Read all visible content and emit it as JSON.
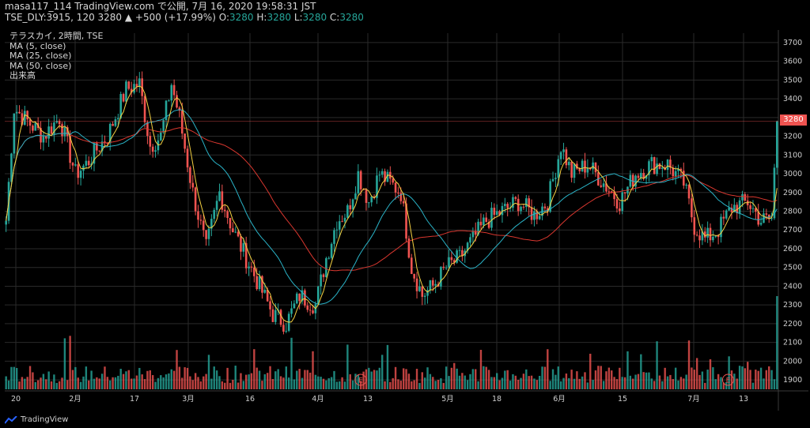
{
  "header": {
    "line1": "masa117_114 TradingView.com で公開, 7月 16, 2020 19:58:31 JST",
    "ticker_info": "TSE_DLY:3915, 120 3280 ▲ +500 (+17.99%)",
    "o_label": "O:",
    "o_val": "3280",
    "h_label": "H:",
    "h_val": "3280",
    "l_label": "L:",
    "l_val": "3280",
    "c_label": "C:",
    "c_val": "3280"
  },
  "legend": [
    "テラスカイ, 2時間, TSE",
    "MA (5, close)",
    "MA (25, close)",
    "MA (50, close)",
    "出来高"
  ],
  "last_price_label": "3280",
  "brand": "TradingView",
  "event_marker": "E",
  "colors": {
    "up": "#26a69a",
    "down": "#ef5350",
    "ma5": "#f5d142",
    "ma25": "#2ab3c7",
    "ma50": "#d9372f",
    "grid": "#2a2a2a",
    "price_line": "#ef5350"
  },
  "chart_data": {
    "type": "candlestick",
    "title": "テラスカイ, 2時間, TSE",
    "ylim": [
      1850,
      3750
    ],
    "y_ticks": [
      1900,
      2000,
      2100,
      2200,
      2300,
      2400,
      2500,
      2600,
      2700,
      2800,
      2900,
      3000,
      3100,
      3200,
      3300,
      3400,
      3500,
      3600,
      3700
    ],
    "x_tick_labels": [
      "20",
      "2月",
      "17",
      "3月",
      "16",
      "4月",
      "13",
      "5月",
      "18",
      "6月",
      "15",
      "7月",
      "13"
    ],
    "close_path": [
      [
        0,
        2750
      ],
      [
        3,
        3350
      ],
      [
        8,
        3280
      ],
      [
        14,
        3200
      ],
      [
        20,
        3300
      ],
      [
        26,
        3000
      ],
      [
        30,
        3050
      ],
      [
        35,
        3150
      ],
      [
        38,
        3200
      ],
      [
        45,
        3450
      ],
      [
        50,
        3480
      ],
      [
        54,
        3150
      ],
      [
        58,
        3200
      ],
      [
        62,
        3480
      ],
      [
        65,
        3300
      ],
      [
        70,
        2900
      ],
      [
        75,
        2600
      ],
      [
        80,
        2900
      ],
      [
        85,
        2700
      ],
      [
        90,
        2550
      ],
      [
        95,
        2400
      ],
      [
        100,
        2250
      ],
      [
        105,
        2200
      ],
      [
        110,
        2350
      ],
      [
        116,
        2300
      ],
      [
        120,
        2550
      ],
      [
        124,
        2750
      ],
      [
        128,
        2800
      ],
      [
        132,
        3000
      ],
      [
        136,
        2850
      ],
      [
        140,
        3000
      ],
      [
        144,
        2950
      ],
      [
        148,
        2900
      ],
      [
        152,
        2500
      ],
      [
        156,
        2350
      ],
      [
        160,
        2400
      ],
      [
        165,
        2500
      ],
      [
        170,
        2550
      ],
      [
        175,
        2650
      ],
      [
        180,
        2750
      ],
      [
        186,
        2800
      ],
      [
        192,
        2850
      ],
      [
        198,
        2780
      ],
      [
        203,
        2850
      ],
      [
        208,
        3150
      ],
      [
        212,
        3000
      ],
      [
        218,
        3050
      ],
      [
        224,
        2950
      ],
      [
        230,
        2850
      ],
      [
        236,
        3000
      ],
      [
        242,
        3050
      ],
      [
        248,
        3050
      ],
      [
        254,
        2950
      ],
      [
        258,
        2720
      ],
      [
        262,
        2650
      ],
      [
        267,
        2700
      ],
      [
        272,
        2820
      ],
      [
        278,
        2850
      ],
      [
        283,
        2750
      ],
      [
        287,
        2760
      ],
      [
        289,
        3280
      ]
    ],
    "volume_events": [
      {
        "x": 0.46,
        "type": "earnings"
      },
      {
        "x": 0.935,
        "type": "earnings"
      }
    ],
    "last_price": 3280,
    "change": 500,
    "change_pct": 17.99,
    "ohlc": {
      "o": 3280,
      "h": 3280,
      "l": 3280,
      "c": 3280
    },
    "moving_averages": [
      5,
      25,
      50
    ]
  }
}
